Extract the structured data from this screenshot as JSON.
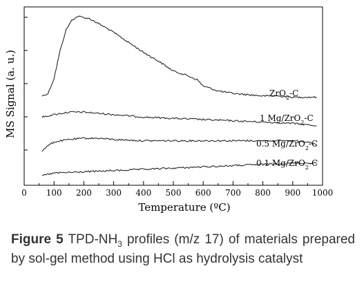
{
  "chart_data": {
    "type": "line",
    "xlabel": "Temperature (ºC)",
    "ylabel": "MS Signal (a. u.)",
    "xlim": [
      0,
      1000
    ],
    "x_ticks": [
      "0",
      "100",
      "200",
      "300",
      "400",
      "500",
      "600",
      "700",
      "800",
      "900",
      "1000"
    ],
    "y_ticks_labeled": false,
    "grid": false,
    "legend": "labels-on-curves",
    "series": [
      {
        "name": "ZrO2-C",
        "label_main": "ZrO",
        "label_sub": "2",
        "label_tail": "-C",
        "x": [
          60,
          80,
          100,
          120,
          140,
          160,
          180,
          200,
          220,
          250,
          280,
          300,
          350,
          400,
          450,
          500,
          540,
          580,
          600,
          650,
          700,
          750,
          800,
          850,
          900,
          950,
          980
        ],
        "y": [
          0.64,
          0.66,
          0.78,
          1.0,
          1.17,
          1.25,
          1.28,
          1.27,
          1.26,
          1.22,
          1.18,
          1.15,
          1.07,
          0.99,
          0.92,
          0.84,
          0.81,
          0.77,
          0.72,
          0.68,
          0.66,
          0.65,
          0.64,
          0.64,
          0.63,
          0.63,
          0.63
        ]
      },
      {
        "name": "1 Mg/ZrO2-C",
        "label_main": "1 Mg/ZrO",
        "label_sub": "2",
        "label_tail": "-C",
        "x": [
          60,
          100,
          150,
          200,
          250,
          300,
          400,
          500,
          600,
          700,
          800,
          900,
          980
        ],
        "y": [
          0.47,
          0.49,
          0.51,
          0.51,
          0.5,
          0.49,
          0.47,
          0.46,
          0.45,
          0.44,
          0.43,
          0.42,
          0.4
        ]
      },
      {
        "name": "0.5 Mg/ZrO2-C",
        "label_main": "0.5 Mg/ZrO",
        "label_sub": "2",
        "label_tail": "-C",
        "x": [
          60,
          80,
          100,
          150,
          200,
          250,
          300,
          400,
          500,
          600,
          700,
          800,
          900,
          960,
          980
        ],
        "y": [
          0.2,
          0.24,
          0.27,
          0.29,
          0.3,
          0.3,
          0.29,
          0.28,
          0.28,
          0.28,
          0.28,
          0.28,
          0.28,
          0.27,
          0.24
        ]
      },
      {
        "name": "0.1 Mg/ZrO2-C",
        "label_main": "0.1 Mg/ZrO",
        "label_sub": "2",
        "label_tail": "-C",
        "x": [
          60,
          100,
          200,
          300,
          400,
          500,
          600,
          700,
          800,
          900,
          980
        ],
        "y": [
          0.0,
          0.02,
          0.03,
          0.04,
          0.05,
          0.06,
          0.07,
          0.08,
          0.09,
          0.1,
          0.1
        ]
      }
    ]
  },
  "caption": {
    "figure_label": "Figure 5",
    "text_before_sub": " TPD-NH",
    "sub": "3",
    "text_after_sub": " profiles (m/z 17) of materials prepared by sol-gel method using HCl as hydrolysis catalyst"
  }
}
